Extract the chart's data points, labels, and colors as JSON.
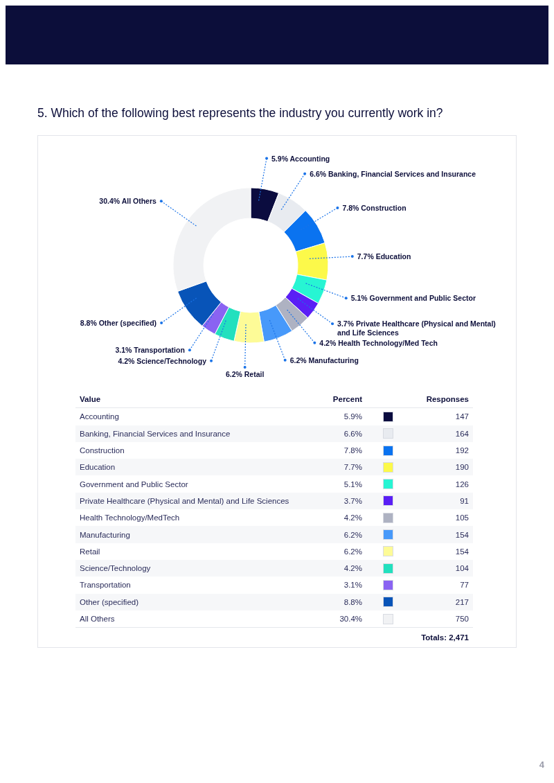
{
  "chart_data": [
    {
      "type": "donut",
      "title": "5. Which of the following best represents the industry you currently work in?",
      "categories": [
        "Accounting",
        "Banking, Financial Services and Insurance",
        "Construction",
        "Education",
        "Government and Public Sector",
        "Private Healthcare (Physical and Mental) and Life Sciences",
        "Health Technology/Med Tech",
        "Manufacturing",
        "Retail",
        "Science/Technology",
        "Transportation",
        "Other (specified)",
        "All Others"
      ],
      "values": [
        5.9,
        6.6,
        7.8,
        7.7,
        5.1,
        3.7,
        4.2,
        6.2,
        6.2,
        4.2,
        3.1,
        8.8,
        30.4
      ],
      "value_labels": [
        "5.9%",
        "6.6%",
        "7.8%",
        "7.7%",
        "5.1%",
        "3.7%",
        "4.2%",
        "6.2%",
        "6.2%",
        "4.2%",
        "3.1%",
        "8.8%",
        "30.4%"
      ],
      "colors": [
        "#0b0c3f",
        "#e8ebf0",
        "#0a73f0",
        "#fcf94a",
        "#27f5d3",
        "#5a1ff5",
        "#aeb2c2",
        "#4799fa",
        "#fdfb97",
        "#22e0be",
        "#8a63f2",
        "#0854b8",
        "#f1f2f4"
      ],
      "legend": false
    },
    {
      "type": "other",
      "categories": [
        "Accounting",
        "Banking, Financial Services and Insurance",
        "Construction",
        "Education",
        "Government and Public Sector",
        "Private Healthcare (Physical and Mental) and Life Sciences",
        "Health Technology/MedTech",
        "Manufacturing",
        "Retail",
        "Science/Technology",
        "Transportation",
        "Other (specified)",
        "All Others"
      ],
      "values": [
        147,
        164,
        192,
        190,
        126,
        91,
        105,
        154,
        154,
        104,
        77,
        217,
        750
      ],
      "data_labels": true,
      "annotations": [
        "Value",
        "Percent",
        "Responses",
        "Totals: 2,471",
        "4"
      ]
    }
  ]
}
